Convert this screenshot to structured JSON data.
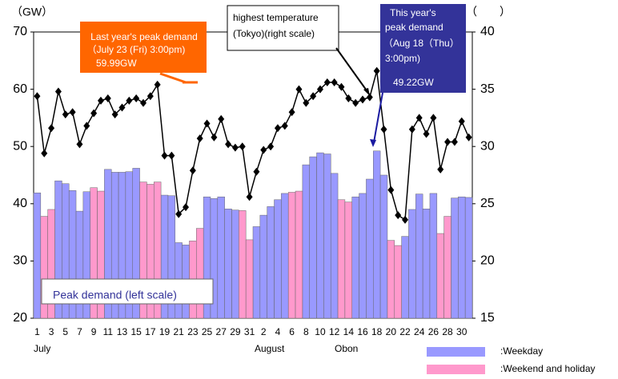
{
  "chart_data": {
    "type": "bar_line",
    "y_unit": "（GW）",
    "y2_unit": "（　　）",
    "categories": [
      "1",
      null,
      "3",
      null,
      "5",
      null,
      "7",
      null,
      "9",
      null,
      "11",
      null,
      "13",
      null,
      "15",
      null,
      "17",
      null,
      "19",
      null,
      "21",
      null,
      "23",
      null,
      "25",
      null,
      "27",
      null,
      "29",
      null,
      "31",
      null,
      "2",
      null,
      "4",
      null,
      "6",
      null,
      "8",
      null,
      "10",
      null,
      "12",
      null,
      "14",
      null,
      "16",
      null,
      "18",
      null,
      "20",
      null,
      "22",
      null,
      "24",
      null,
      "26",
      null,
      "28",
      null,
      "30",
      null
    ],
    "period_labels": [
      "July",
      "August",
      "Obon"
    ],
    "series": [
      {
        "name": ":Weekday",
        "color": "#9999ff",
        "values": [
          41.9,
          null,
          null,
          44,
          43.5,
          42.3,
          38.7,
          42.1,
          null,
          null,
          46,
          45.5,
          45.5,
          45.6,
          46.2,
          null,
          null,
          null,
          41.5,
          41.4,
          33.2,
          32.8,
          null,
          null,
          41.2,
          40.9,
          41.2,
          39.1,
          38.9,
          null,
          null,
          36,
          38,
          39.5,
          40.7,
          41.8,
          null,
          null,
          46.8,
          48.2,
          48.9,
          48.7,
          45.3,
          null,
          null,
          41.2,
          41.8,
          44.3,
          49.22,
          45,
          null,
          null,
          34.3,
          39,
          41.7,
          39.1,
          41.8,
          null,
          null,
          41,
          41.2,
          41.1
        ]
      },
      {
        "name": ":Weekend and holiday",
        "color": "#ff99cc",
        "values": [
          null,
          37.8,
          39,
          null,
          null,
          null,
          null,
          null,
          42.8,
          42.2,
          null,
          null,
          null,
          null,
          null,
          43.8,
          43.4,
          43.8,
          null,
          null,
          null,
          null,
          33.5,
          35.7,
          null,
          null,
          null,
          null,
          null,
          38.8,
          33.7,
          null,
          null,
          null,
          null,
          null,
          42,
          42.2,
          null,
          null,
          null,
          null,
          null,
          40.7,
          40.3,
          null,
          null,
          null,
          null,
          null,
          33.6,
          32.7,
          null,
          null,
          null,
          null,
          null,
          34.8,
          37.8,
          null,
          null,
          null
        ]
      },
      {
        "color": "#000000",
        "axis": "y2",
        "values": [
          34.4,
          29.4,
          31.6,
          34.8,
          32.8,
          33,
          30.2,
          31.8,
          32.9,
          34,
          34.2,
          32.8,
          33.4,
          34,
          34.2,
          33.8,
          34.4,
          35.4,
          29.2,
          29.2,
          24.1,
          24.7,
          27.9,
          30.7,
          32,
          30.8,
          32.4,
          30.2,
          29.9,
          30,
          25.6,
          27.8,
          29.7,
          30,
          31.6,
          31.8,
          33,
          35,
          33.8,
          34.4,
          35,
          35.6,
          35.6,
          35.2,
          34.2,
          33.8,
          34.1,
          34.3,
          36.6,
          31.5,
          26.2,
          24,
          23.6,
          31.5,
          32.5,
          31.1,
          32.5,
          28,
          30.4,
          30.4,
          32.2,
          30.8
        ]
      }
    ],
    "ylim": [
      20,
      70
    ],
    "yticks": [
      20,
      30,
      40,
      50,
      60,
      70
    ],
    "y2lim": [
      15,
      40
    ],
    "y2ticks": [
      15,
      20,
      25,
      30,
      35,
      40
    ],
    "bar_label": "Peak demand  (left scale)",
    "annotations": {
      "last_year": [
        "Last year's peak demand",
        "（July 23 (Fri) 3:00pm)",
        "59.99GW"
      ],
      "temperature": [
        "highest temperature",
        "(Tokyo)(right scale)"
      ],
      "this_year": [
        "This year's",
        "peak demand",
        "（Aug 18（Thu）",
        "3:00pm)",
        "49.22GW"
      ]
    }
  }
}
